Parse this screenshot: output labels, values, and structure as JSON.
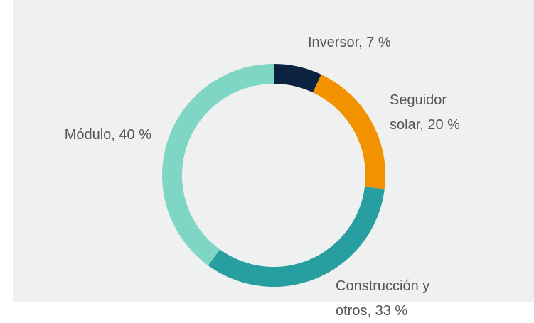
{
  "chart_data": {
    "type": "donut",
    "values": [
      7,
      20,
      33,
      40
    ],
    "value_labels": [
      [
        "Inversor, 7 %"
      ],
      [
        "Seguidor",
        "solar, 20 %"
      ],
      [
        "Construcción y",
        "otros, 33 %"
      ],
      [
        "Módulo, 40 %"
      ]
    ],
    "colors": [
      "#0b2240",
      "#f39200",
      "#279ea0",
      "#7fd6c4"
    ]
  }
}
